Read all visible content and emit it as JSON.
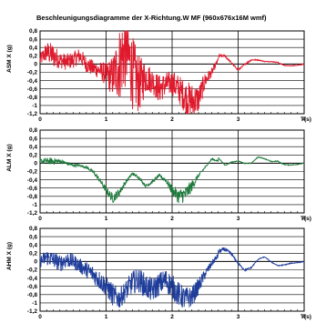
{
  "title": "Beschleunigungsdiagramme der X-Richtung.W MF (960x676x16M wmf)",
  "chart_data": [
    {
      "type": "line",
      "ylabel": "ASM X (g)",
      "xlabel": "T(s)",
      "xlim": [
        0,
        4
      ],
      "ylim": [
        -1.2,
        0.8
      ],
      "xticks": [
        "0",
        "1",
        "2",
        "3",
        "4"
      ],
      "yticks": [
        "0,8",
        "0,6",
        "0,4",
        "0,2",
        "0",
        "-0,2",
        "-0,4",
        "-0,6",
        "-0,8",
        "-1",
        "-1,2"
      ],
      "grid": true,
      "color": "#e0192c",
      "series": [
        {
          "x": [
            0,
            0.1,
            0.2,
            0.3,
            0.4,
            0.5,
            0.6,
            0.7,
            0.8,
            0.9,
            1.0,
            1.1,
            1.2,
            1.3,
            1.4,
            1.5,
            1.6,
            1.7,
            1.8,
            1.9,
            2.0,
            2.1,
            2.2,
            2.3,
            2.4,
            2.5,
            2.6,
            2.7,
            2.8,
            2.9,
            3.0,
            3.1,
            3.2,
            3.3,
            3.4,
            3.5,
            3.6,
            3.7,
            3.8,
            3.9,
            4.0
          ],
          "y": [
            0.1,
            0.3,
            0.2,
            0.1,
            0.05,
            0.1,
            0.2,
            0.0,
            -0.1,
            -0.15,
            -0.25,
            -0.3,
            0.0,
            0.4,
            -0.2,
            -0.5,
            -0.3,
            -0.4,
            -0.6,
            -0.5,
            -0.45,
            -0.6,
            -0.8,
            -0.9,
            -0.85,
            -0.4,
            -0.2,
            0.1,
            0.2,
            0.1,
            -0.05,
            0.05,
            0.1,
            0.05,
            0.0,
            0.02,
            0.04,
            0.0,
            0.0,
            0.0,
            0.0
          ],
          "noise": [
            0.15,
            0.25,
            0.3,
            0.2,
            0.2,
            0.2,
            0.2,
            0.2,
            0.2,
            0.2,
            0.3,
            0.5,
            0.9,
            1.0,
            0.9,
            0.7,
            0.4,
            0.3,
            0.35,
            0.3,
            0.3,
            0.35,
            0.4,
            0.45,
            0.35,
            0.2,
            0.1,
            0.05,
            0.03,
            0.02,
            0.02,
            0.02,
            0.02,
            0.01,
            0.01,
            0.01,
            0.01,
            0.01,
            0.01,
            0.01,
            0.01
          ]
        }
      ]
    },
    {
      "type": "line",
      "ylabel": "ALM X (g)",
      "xlabel": "T(s)",
      "xlim": [
        0,
        4
      ],
      "ylim": [
        -1.2,
        0.8
      ],
      "xticks": [
        "0",
        "1",
        "2",
        "3",
        "4"
      ],
      "yticks": [
        "0,8",
        "0,6",
        "0,4",
        "0,2",
        "0",
        "-0,2",
        "-0,4",
        "-0,6",
        "-0,8",
        "-1",
        "-1,2"
      ],
      "grid": true,
      "color": "#1e7a3c",
      "series": [
        {
          "x": [
            0,
            0.1,
            0.2,
            0.3,
            0.4,
            0.5,
            0.6,
            0.7,
            0.8,
            0.9,
            1.0,
            1.1,
            1.2,
            1.3,
            1.4,
            1.5,
            1.6,
            1.7,
            1.8,
            1.9,
            2.0,
            2.1,
            2.2,
            2.3,
            2.4,
            2.5,
            2.6,
            2.7,
            2.8,
            2.9,
            3.0,
            3.1,
            3.2,
            3.3,
            3.4,
            3.5,
            3.6,
            3.7,
            3.8,
            3.9,
            4.0
          ],
          "y": [
            0.05,
            0.05,
            0.05,
            0.05,
            0.0,
            -0.05,
            -0.05,
            -0.1,
            -0.2,
            -0.4,
            -0.65,
            -0.85,
            -0.7,
            -0.45,
            -0.25,
            -0.35,
            -0.55,
            -0.45,
            -0.3,
            -0.4,
            -0.65,
            -0.8,
            -0.75,
            -0.55,
            -0.3,
            -0.1,
            0.1,
            0.05,
            -0.05,
            0.1,
            0.15,
            0.05,
            0.0,
            0.1,
            0.05,
            0.0,
            0.05,
            0.0,
            0.0,
            0.0,
            0.0
          ],
          "noise": [
            0.06,
            0.08,
            0.08,
            0.06,
            0.04,
            0.03,
            0.03,
            0.03,
            0.04,
            0.06,
            0.08,
            0.12,
            0.1,
            0.05,
            0.04,
            0.03,
            0.04,
            0.04,
            0.04,
            0.06,
            0.12,
            0.18,
            0.2,
            0.14,
            0.05,
            0.02,
            0.02,
            0.01,
            0.01,
            0.01,
            0.01,
            0.01,
            0.01,
            0.01,
            0.01,
            0.01,
            0.01,
            0.01,
            0.01,
            0.01,
            0.01
          ]
        }
      ]
    },
    {
      "type": "line",
      "ylabel": "AHM X (g)",
      "xlabel": "T(s)",
      "xlim": [
        0,
        4
      ],
      "ylim": [
        -1.2,
        0.8
      ],
      "xticks": [
        "0",
        "1",
        "2",
        "3",
        "4"
      ],
      "yticks": [
        "0,8",
        "0,6",
        "0,4",
        "0,2",
        "0",
        "-0,2",
        "-0,4",
        "-0,6",
        "-0,8",
        "-1",
        "-1,2"
      ],
      "grid": true,
      "color": "#1e3c9a",
      "series": [
        {
          "x": [
            0,
            0.1,
            0.2,
            0.3,
            0.4,
            0.5,
            0.6,
            0.7,
            0.8,
            0.9,
            1.0,
            1.1,
            1.2,
            1.3,
            1.4,
            1.5,
            1.6,
            1.7,
            1.8,
            1.9,
            2.0,
            2.1,
            2.2,
            2.3,
            2.4,
            2.5,
            2.6,
            2.7,
            2.8,
            2.9,
            3.0,
            3.1,
            3.2,
            3.3,
            3.4,
            3.5,
            3.6,
            3.7,
            3.8,
            3.9,
            4.0
          ],
          "y": [
            0.0,
            0.1,
            0.05,
            -0.05,
            0.05,
            0.0,
            -0.1,
            -0.2,
            -0.3,
            -0.45,
            -0.6,
            -0.8,
            -0.9,
            -0.7,
            -0.5,
            -0.45,
            -0.6,
            -0.7,
            -0.55,
            -0.45,
            -0.6,
            -0.8,
            -0.9,
            -0.85,
            -0.6,
            -0.3,
            -0.05,
            0.15,
            0.3,
            0.25,
            0.05,
            -0.15,
            -0.15,
            0.0,
            0.05,
            -0.05,
            -0.1,
            -0.05,
            0.0,
            0.0,
            0.0
          ],
          "noise": [
            0.15,
            0.2,
            0.2,
            0.2,
            0.2,
            0.18,
            0.18,
            0.2,
            0.22,
            0.24,
            0.25,
            0.28,
            0.25,
            0.25,
            0.28,
            0.3,
            0.3,
            0.3,
            0.28,
            0.28,
            0.3,
            0.3,
            0.28,
            0.25,
            0.2,
            0.12,
            0.08,
            0.06,
            0.05,
            0.04,
            0.02,
            0.02,
            0.02,
            0.01,
            0.01,
            0.01,
            0.01,
            0.01,
            0.01,
            0.01,
            0.01
          ]
        }
      ]
    }
  ]
}
